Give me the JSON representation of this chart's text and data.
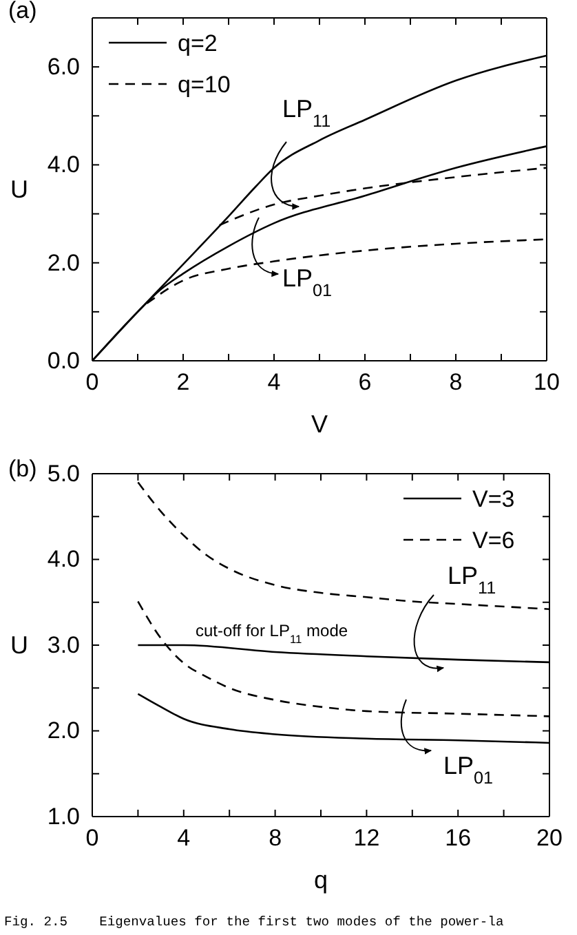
{
  "chart_data": [
    {
      "type": "line",
      "title": "(a)",
      "xlabel": "V",
      "ylabel": "U",
      "xlim": [
        0,
        10
      ],
      "ylim": [
        0,
        7
      ],
      "xticks": [
        0,
        {
          "value": 1,
          "label": null
        },
        2,
        {
          "value": 3,
          "label": null
        },
        4,
        {
          "value": 5,
          "label": null
        },
        6,
        {
          "value": 7,
          "label": null
        },
        8,
        {
          "value": 9,
          "label": null
        },
        10
      ],
      "yticks": [
        {
          "value": 0,
          "label": "0.0"
        },
        {
          "value": 1,
          "label": null
        },
        {
          "value": 2,
          "label": "2.0"
        },
        {
          "value": 3,
          "label": null
        },
        {
          "value": 4,
          "label": "4.0"
        },
        {
          "value": 5,
          "label": null
        },
        {
          "value": 6,
          "label": "6.0"
        },
        {
          "value": 7,
          "label": null
        }
      ],
      "legend": "top left",
      "grid": false,
      "series": [
        {
          "name": "q=2",
          "color": "#000000",
          "line_style": "solid",
          "x": [
            0,
            1,
            2,
            3,
            3.6,
            4,
            5,
            6,
            8,
            10
          ],
          "values": [
            0,
            1.0,
            1.97,
            2.95,
            3.56,
            3.94,
            4.5,
            4.92,
            5.72,
            6.23
          ]
        },
        {
          "color": "#000000",
          "line_style": "solid",
          "x": [
            0,
            1,
            1.5,
            2,
            3,
            4,
            6,
            8,
            10
          ],
          "values": [
            0,
            1.0,
            1.45,
            1.78,
            2.34,
            2.81,
            3.37,
            3.94,
            4.38
          ]
        },
        {
          "name": "q=10",
          "color": "#000000",
          "line_style": "dashed",
          "x": [
            2.8,
            4,
            5,
            6,
            8,
            10
          ],
          "values": [
            2.77,
            3.19,
            3.37,
            3.52,
            3.75,
            3.94
          ]
        },
        {
          "color": "#000000",
          "line_style": "dashed",
          "x": [
            1.2,
            2,
            3,
            4,
            6,
            8,
            10
          ],
          "values": [
            1.17,
            1.64,
            1.88,
            2.03,
            2.25,
            2.39,
            2.48
          ]
        }
      ],
      "annotations": [
        "LP$_{11}$",
        "LP$_{01}$"
      ]
    },
    {
      "type": "line",
      "title": "(b)",
      "xlabel": "q",
      "ylabel": "U",
      "xlim": [
        0,
        20
      ],
      "ylim": [
        1,
        5
      ],
      "xticks": [
        0,
        {
          "value": 2,
          "label": null
        },
        4,
        {
          "value": 6,
          "label": null
        },
        8,
        {
          "value": 10,
          "label": null
        },
        12,
        {
          "value": 14,
          "label": null
        },
        16,
        {
          "value": 18,
          "label": null
        },
        20
      ],
      "yticks": [
        {
          "value": 1,
          "label": "1.0"
        },
        {
          "value": 1.5,
          "label": null
        },
        {
          "value": 2,
          "label": "2.0"
        },
        {
          "value": 2.5,
          "label": null
        },
        {
          "value": 3,
          "label": "3.0"
        },
        {
          "value": 3.5,
          "label": null
        },
        {
          "value": 4,
          "label": "4.0"
        },
        {
          "value": 4.5,
          "label": null
        },
        {
          "value": 5,
          "label": "5.0"
        }
      ],
      "legend": "top right",
      "grid": false,
      "series": [
        {
          "name": "V=3",
          "color": "#000000",
          "line_style": "solid",
          "x": [
            2,
            3,
            4,
            8,
            12,
            16,
            20
          ],
          "values": [
            3.0,
            3.0,
            3.0,
            2.92,
            2.87,
            2.83,
            2.8
          ]
        },
        {
          "color": "#000000",
          "line_style": "solid",
          "x": [
            2,
            3,
            4,
            6,
            8,
            12,
            16,
            20
          ],
          "values": [
            2.43,
            2.28,
            2.14,
            2.02,
            1.96,
            1.91,
            1.89,
            1.86
          ]
        },
        {
          "name": "V=6",
          "color": "#000000",
          "line_style": "dashed",
          "x": [
            2,
            3,
            4,
            5,
            6,
            8,
            10,
            12,
            14,
            16,
            20
          ],
          "values": [
            4.9,
            4.56,
            4.28,
            4.05,
            3.89,
            3.7,
            3.61,
            3.56,
            3.51,
            3.48,
            3.42
          ]
        },
        {
          "color": "#000000",
          "line_style": "dashed",
          "x": [
            2,
            3,
            4,
            5,
            6,
            8,
            10,
            12,
            16,
            20
          ],
          "values": [
            3.51,
            3.08,
            2.79,
            2.63,
            2.5,
            2.36,
            2.28,
            2.23,
            2.2,
            2.17
          ]
        }
      ],
      "annotations": [
        "cut-off for LP$_{11}$ mode",
        "LP$_{11}$",
        "LP$_{01}$",
        "Fig. 2.5    Eigenvalues for the first two modes of the power-la"
      ]
    }
  ]
}
